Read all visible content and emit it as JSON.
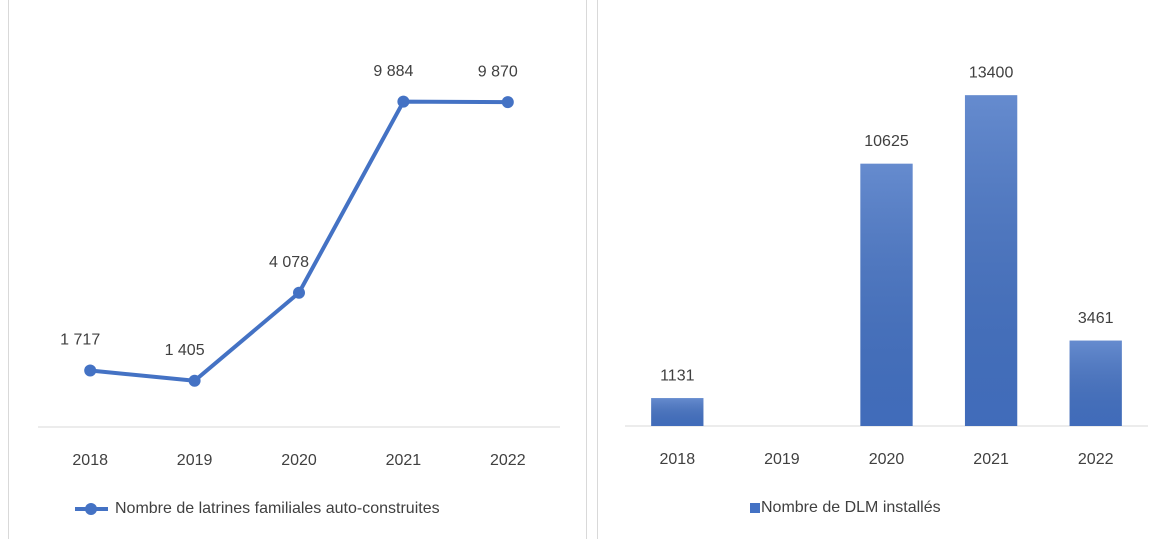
{
  "chart_data": [
    {
      "type": "line",
      "categories": [
        "2018",
        "2019",
        "2020",
        "2021",
        "2022"
      ],
      "series": [
        {
          "name": "Nombre de latrines familiales auto-construites",
          "color": "#4472c4",
          "values": [
            1717,
            1405,
            4078,
            9884,
            9870
          ],
          "value_labels": [
            "1 717",
            "1 405",
            "4 078",
            "9 884",
            "9 870"
          ]
        }
      ],
      "ylim": [
        0,
        12000
      ],
      "legend": "bottom"
    },
    {
      "type": "bar",
      "categories": [
        "2018",
        "2019",
        "2020",
        "2021",
        "2022"
      ],
      "series": [
        {
          "name": "Nombre de DLM installés",
          "color": "#4472c4",
          "values": [
            1131,
            null,
            10625,
            13400,
            3461
          ]
        }
      ],
      "ylim": [
        0,
        16000
      ],
      "legend": "bottom"
    }
  ]
}
